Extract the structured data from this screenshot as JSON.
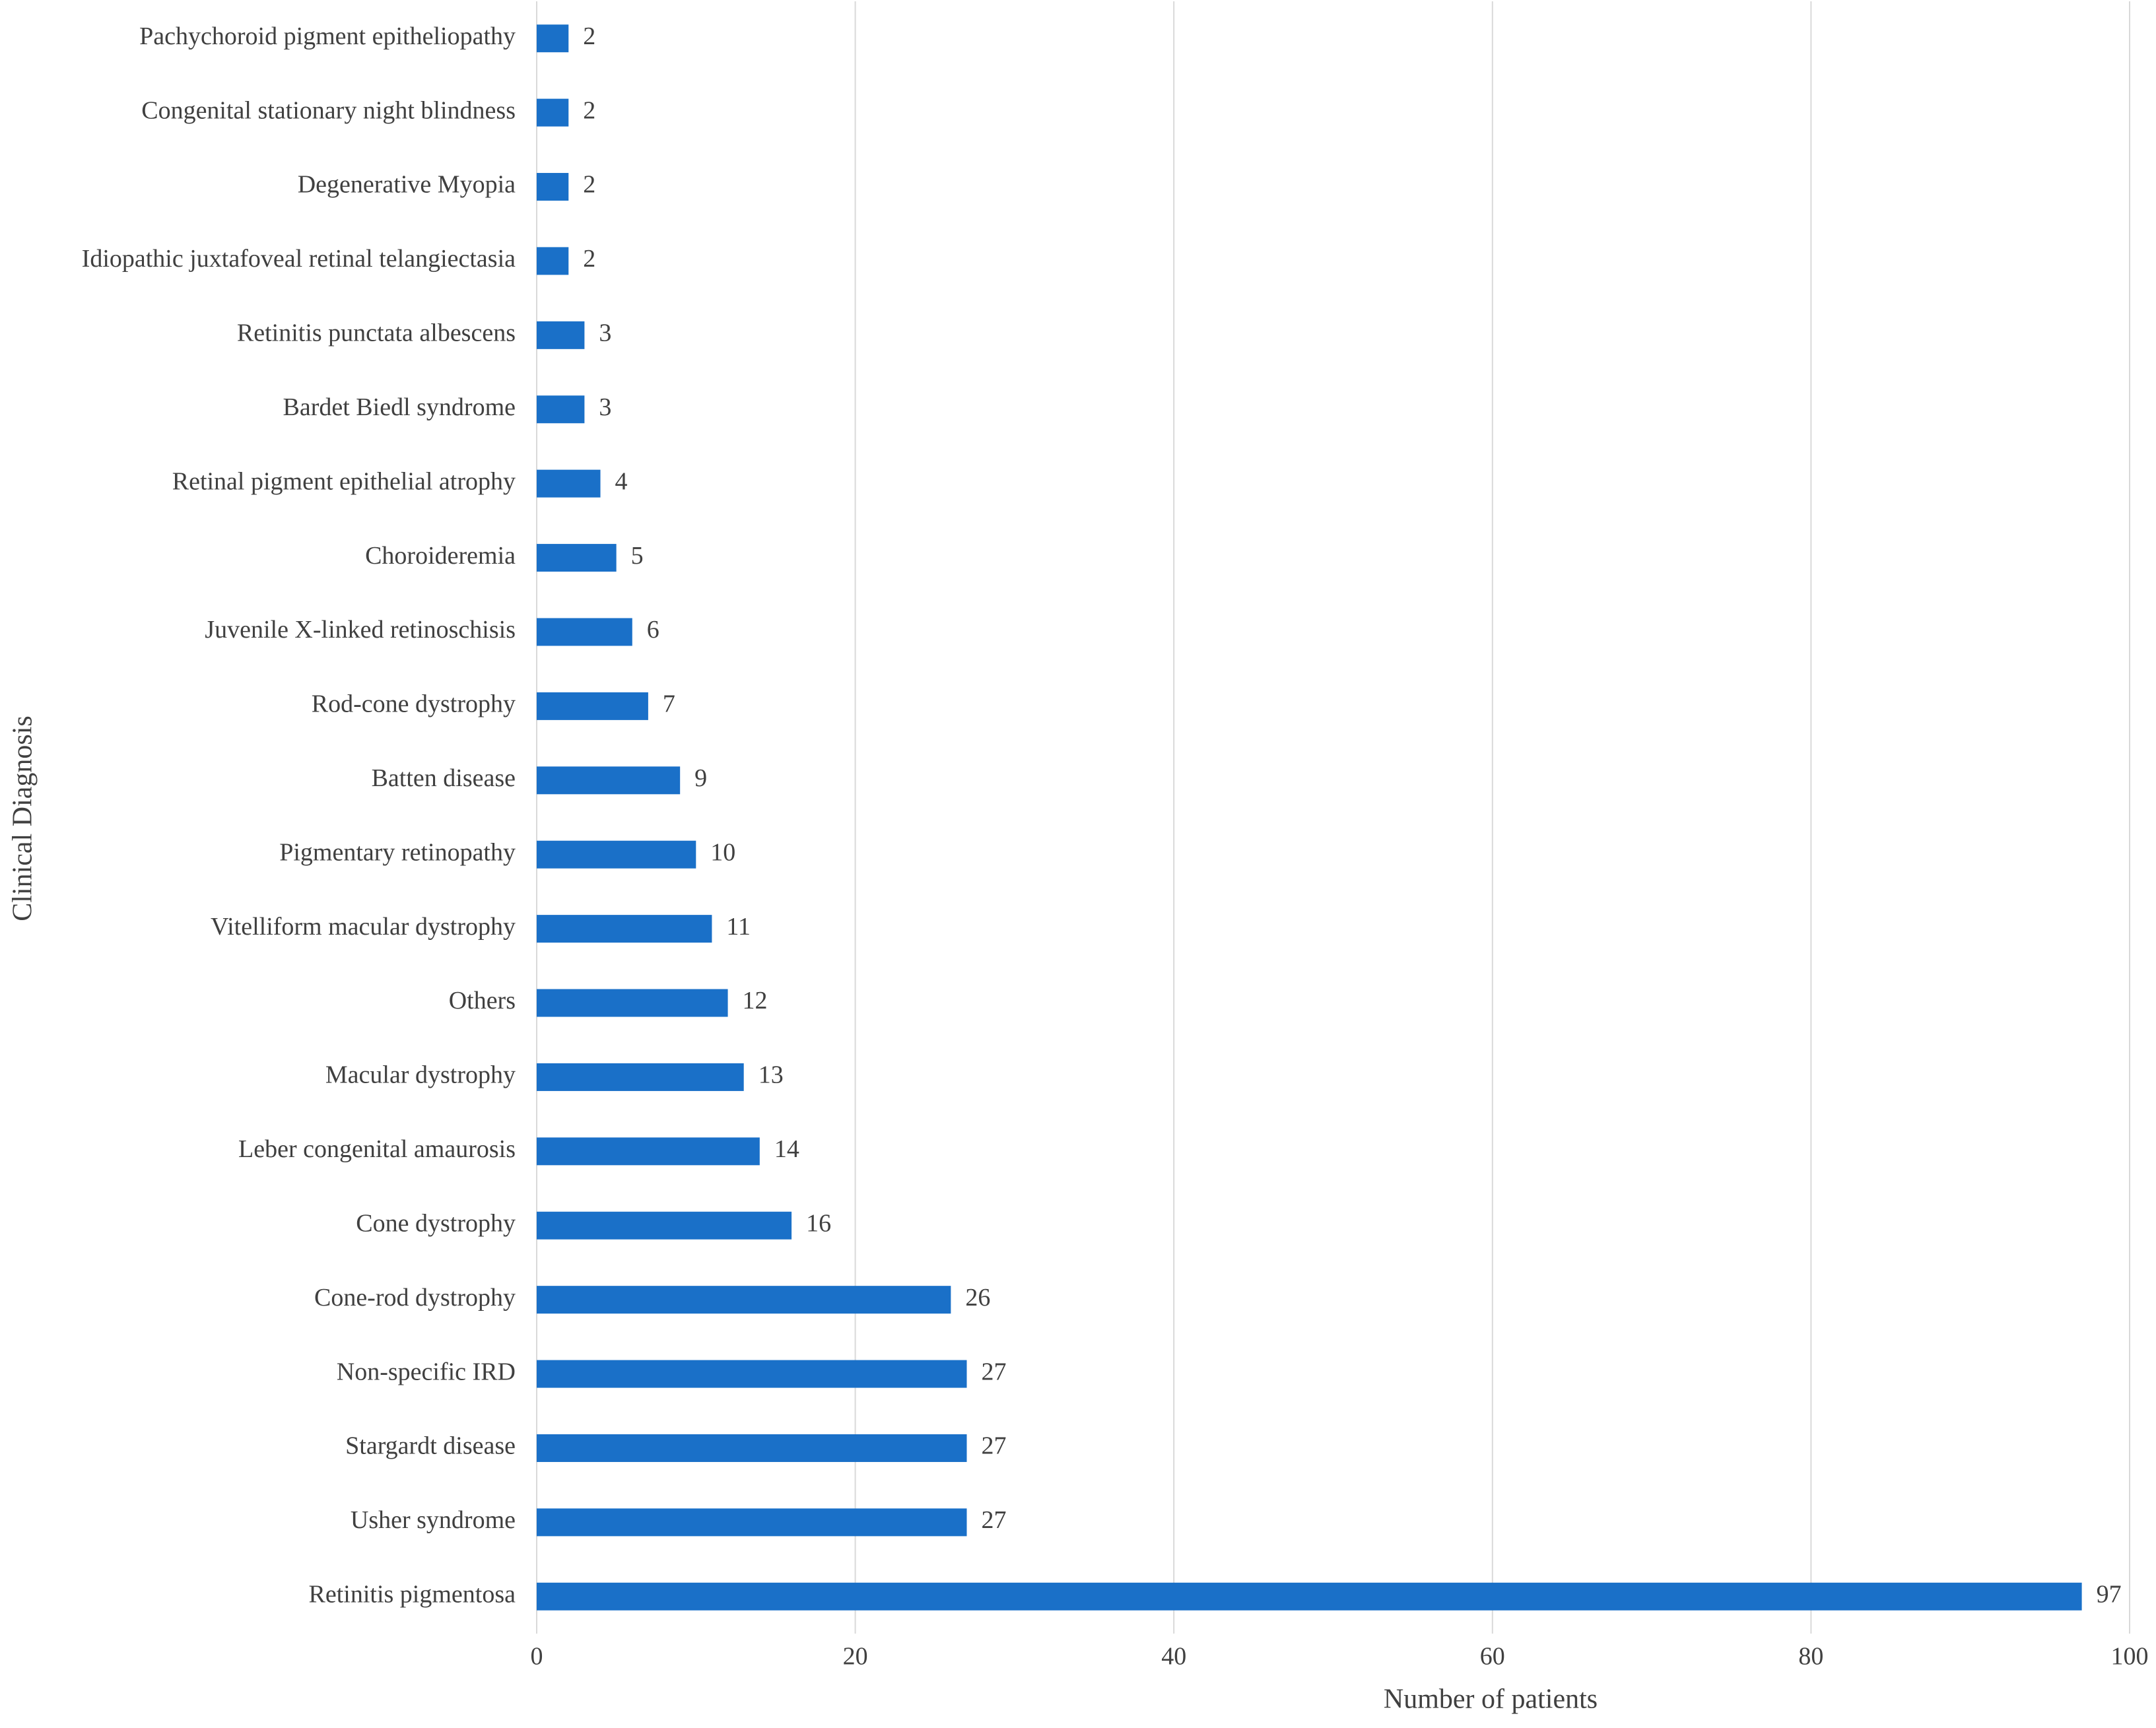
{
  "chart_data": {
    "type": "bar",
    "orientation": "horizontal",
    "x_label": "Number of patients",
    "y_label": "Clinical Diagnosis",
    "categories": [
      "Pachychoroid pigment epitheliopathy",
      "Congenital stationary night blindness",
      "Degenerative Myopia",
      "Idiopathic juxtafoveal retinal telangiectasia",
      "Retinitis punctata albescens",
      "Bardet Biedl syndrome",
      "Retinal pigment epithelial atrophy",
      "Choroideremia",
      "Juvenile X-linked retinoschisis",
      "Rod-cone dystrophy",
      "Batten disease",
      "Pigmentary retinopathy",
      "Vitelliform macular dystrophy",
      "Others",
      "Macular dystrophy",
      "Leber congenital amaurosis",
      "Cone dystrophy",
      "Cone-rod dystrophy",
      "Non-specific IRD",
      "Stargardt disease",
      "Usher syndrome",
      "Retinitis pigmentosa"
    ],
    "values": [
      2,
      2,
      2,
      2,
      3,
      3,
      4,
      5,
      6,
      7,
      9,
      10,
      11,
      12,
      13,
      14,
      16,
      26,
      27,
      27,
      27,
      97
    ],
    "color": "#1a70c8",
    "xlim": [
      0,
      100
    ],
    "xticks": [
      0,
      20,
      40,
      60,
      80,
      100
    ],
    "grid": true
  }
}
